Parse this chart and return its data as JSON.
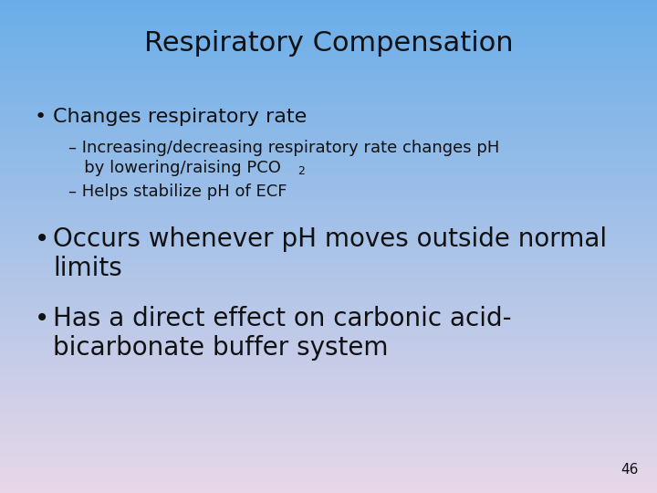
{
  "title": "Respiratory Compensation",
  "title_fontsize": 22,
  "background_top": "#6aaee8",
  "background_bottom": "#e8d8e8",
  "text_color": "#111111",
  "slide_number": "46",
  "bullet1": "Changes respiratory rate",
  "sub1a_line1": "– Increasing/decreasing respiratory rate changes pH",
  "sub1a_line2": "   by lowering/raising PCO",
  "sub1a_subscript": "2",
  "sub1b": "– Helps stabilize pH of ECF",
  "bullet2_line1": "Occurs whenever pH moves outside normal",
  "bullet2_line2": "limits",
  "bullet3_line1": "Has a direct effect on carbonic acid-",
  "bullet3_line2": "bicarbonate buffer system",
  "bullet_fontsize": 16,
  "sub_fontsize": 13,
  "bullet_symbol": "•"
}
